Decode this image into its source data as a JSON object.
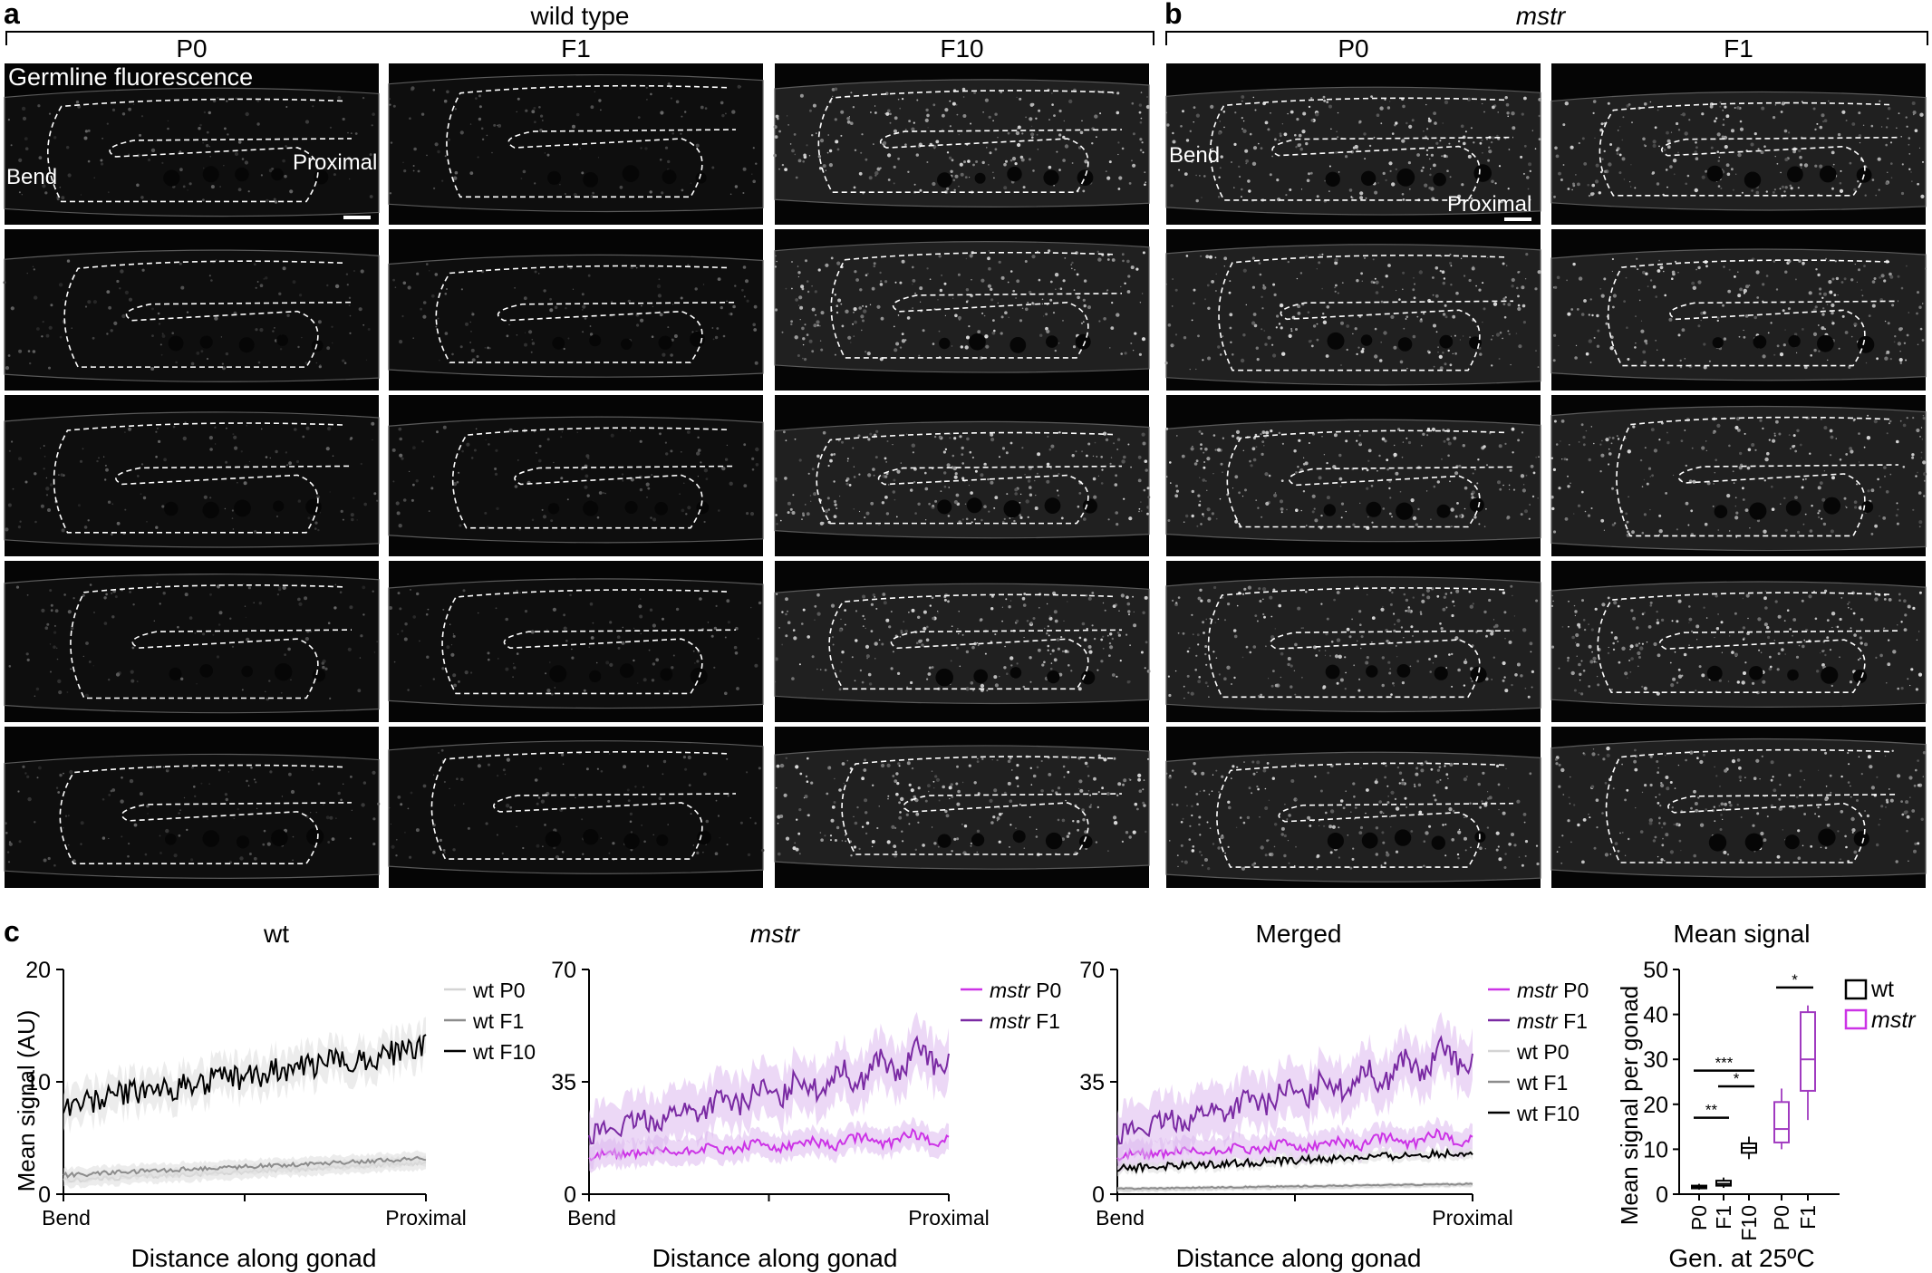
{
  "panel_a": {
    "letter": "a",
    "group_title": "wild type",
    "columns": [
      "P0",
      "F1",
      "F10"
    ],
    "overlay_title": "Germline fluorescence",
    "label_bend": "Bend",
    "label_proximal": "Proximal"
  },
  "panel_b": {
    "letter": "b",
    "group_title": "mstr",
    "columns": [
      "P0",
      "F1"
    ],
    "label_bend": "Bend",
    "label_proximal": "Proximal"
  },
  "panel_c": {
    "letter": "c"
  },
  "colors": {
    "wt_P0": "#d4d4d4",
    "wt_F1": "#8c8c8c",
    "wt_F10": "#000000",
    "mstr_P0": "#cc33e6",
    "mstr_F1": "#7a2aa3",
    "mstr_band": "#dcb8ee"
  },
  "chart_data": [
    {
      "type": "line",
      "title": "wt",
      "xlabel": "Distance along gonad",
      "ylabel": "Mean signal (AU)",
      "x_tick_labels": [
        "Bend",
        "Proximal"
      ],
      "y_ticks": [
        0,
        10,
        20
      ],
      "ylim": [
        0,
        20
      ],
      "series": [
        {
          "name": "wt P0",
          "color": "#d4d4d4",
          "start": 1.2,
          "end": 2.8
        },
        {
          "name": "wt F1",
          "color": "#8c8c8c",
          "start": 1.7,
          "end": 3.2
        },
        {
          "name": "wt F10",
          "color": "#000000",
          "start": 8.0,
          "end": 13.0
        }
      ]
    },
    {
      "type": "line",
      "title": "mstr",
      "xlabel": "Distance along gonad",
      "x_tick_labels": [
        "Bend",
        "Proximal"
      ],
      "y_ticks": [
        0,
        35,
        70
      ],
      "ylim": [
        0,
        70
      ],
      "series": [
        {
          "name": "mstr P0",
          "color": "#cc33e6",
          "start": 12,
          "end": 18
        },
        {
          "name": "mstr F1",
          "color": "#7a2aa3",
          "start": 19,
          "end": 44
        }
      ]
    },
    {
      "type": "line",
      "title": "Merged",
      "xlabel": "Distance along gonad",
      "x_tick_labels": [
        "Bend",
        "Proximal"
      ],
      "y_ticks": [
        0,
        35,
        70
      ],
      "ylim": [
        0,
        70
      ],
      "series": [
        {
          "name": "mstr P0",
          "color": "#cc33e6",
          "start": 12,
          "end": 18
        },
        {
          "name": "mstr F1",
          "color": "#7a2aa3",
          "start": 19,
          "end": 44
        },
        {
          "name": "wt P0",
          "color": "#d4d4d4",
          "start": 1.2,
          "end": 2.8
        },
        {
          "name": "wt F1",
          "color": "#8c8c8c",
          "start": 1.7,
          "end": 3.2
        },
        {
          "name": "wt F10",
          "color": "#000000",
          "start": 8.0,
          "end": 13.0
        }
      ]
    },
    {
      "type": "box",
      "title": "Mean signal",
      "xlabel": "Gen. at 25ºC",
      "ylabel": "Mean signal per gonad",
      "y_ticks": [
        0,
        10,
        20,
        30,
        40,
        50
      ],
      "ylim": [
        0,
        50
      ],
      "categories": [
        "P0",
        "F1",
        "F10",
        "P0",
        "F1"
      ],
      "legend": [
        "wt",
        "mstr"
      ],
      "groups": [
        {
          "label": "P0",
          "genotype": "wt",
          "min": 1.0,
          "q1": 1.3,
          "median": 1.6,
          "q3": 1.9,
          "max": 2.3
        },
        {
          "label": "F1",
          "genotype": "wt",
          "min": 1.4,
          "q1": 1.9,
          "median": 2.3,
          "q3": 3.0,
          "max": 3.7
        },
        {
          "label": "F10",
          "genotype": "wt",
          "min": 7.8,
          "q1": 9.2,
          "median": 10.3,
          "q3": 11.3,
          "max": 12.8
        },
        {
          "label": "P0",
          "genotype": "mstr",
          "min": 10.0,
          "q1": 11.5,
          "median": 14.5,
          "q3": 20.5,
          "max": 23.5
        },
        {
          "label": "F1",
          "genotype": "mstr",
          "min": 16.5,
          "q1": 23.0,
          "median": 30.0,
          "q3": 40.5,
          "max": 42.0
        }
      ],
      "significance": [
        {
          "label": "**",
          "between": [
            "P0",
            "F1"
          ]
        },
        {
          "label": "*",
          "between": [
            "F1",
            "F10"
          ]
        },
        {
          "label": "***",
          "between": [
            "P0",
            "F10"
          ]
        },
        {
          "label": "*",
          "between": [
            "P0",
            "F1"
          ],
          "genotype": "mstr"
        }
      ]
    }
  ]
}
